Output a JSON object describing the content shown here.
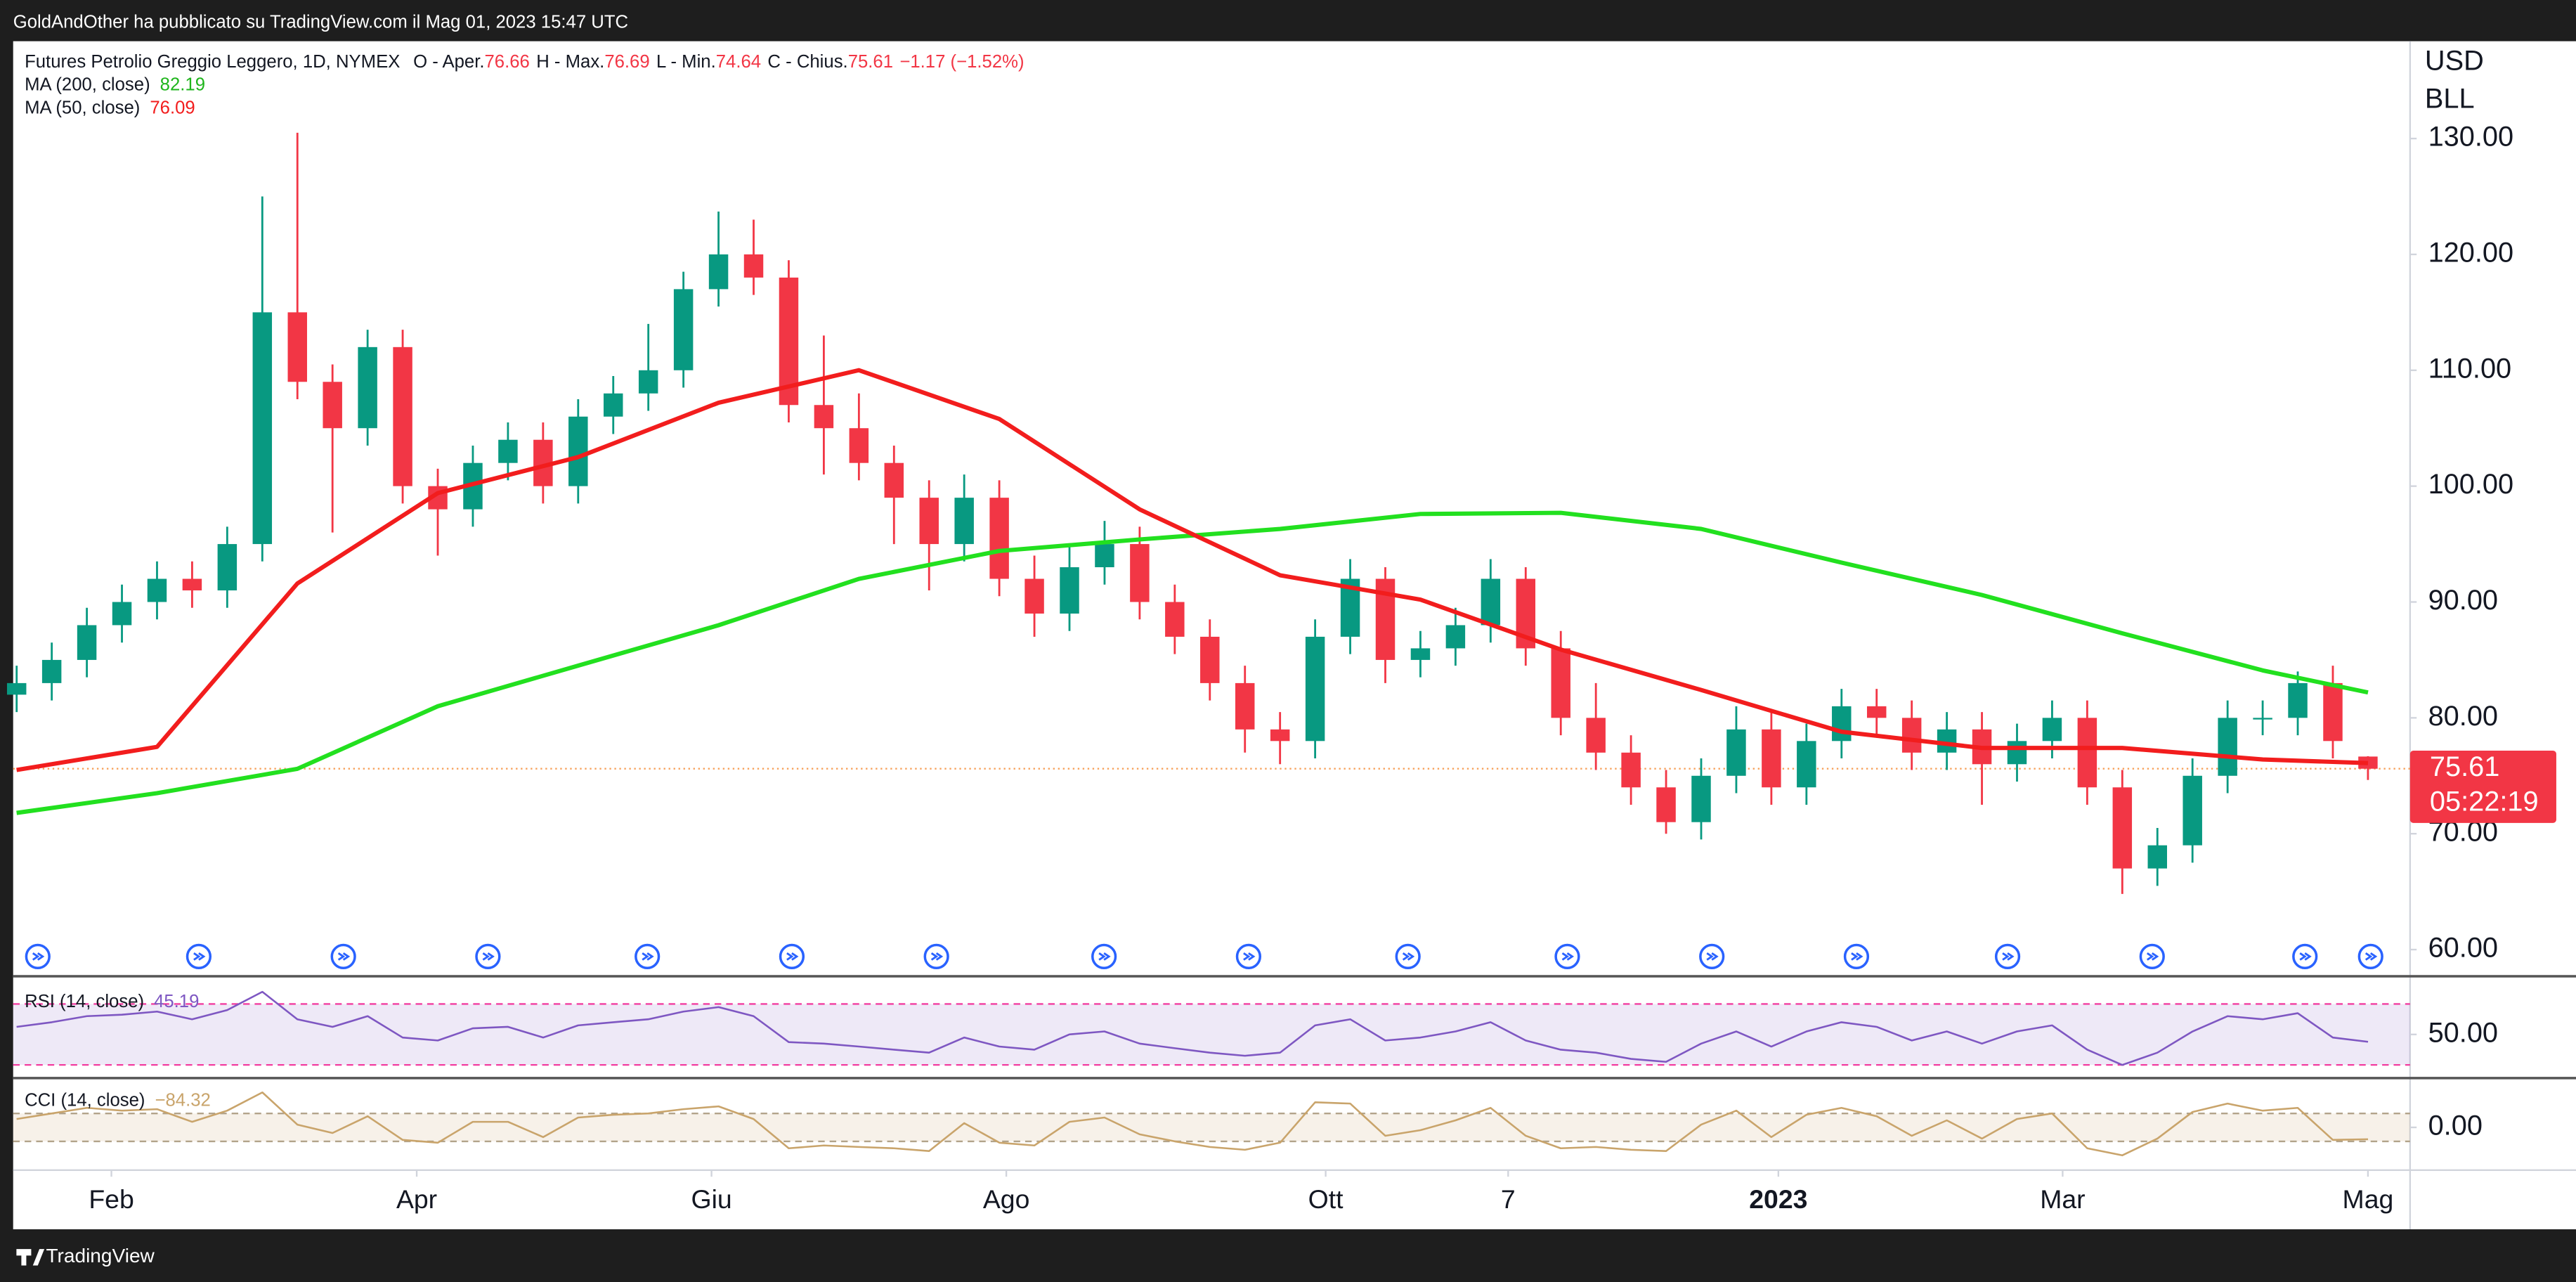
{
  "header": "GoldAndOther ha pubblicato su TradingView.com il Mag 01, 2023 15:47 UTC",
  "footer": "TradingView",
  "chart_data": {
    "type": "candlestick",
    "title": "Futures Petrolio Greggio Leggero, 1D, NYMEX",
    "legend_labels": {
      "open": "O - Aper.",
      "high": "H - Max.",
      "low": "L - Min.",
      "close": "C - Chius."
    },
    "change_label": "−1.17 (−1.52%)",
    "currency": "USD",
    "unit": "BLL",
    "countdown": "05:22:19",
    "up_color": "#089981",
    "down_color": "#f23645",
    "xlim": [
      -0.1,
      68.2
    ],
    "xticks": [
      {
        "value": 2.7,
        "label": "Feb"
      },
      {
        "value": 11.4,
        "label": "Apr"
      },
      {
        "value": 19.8,
        "label": "Giu"
      },
      {
        "value": 28.2,
        "label": "Ago"
      },
      {
        "value": 37.3,
        "label": "Ott"
      },
      {
        "value": 42.5,
        "label": "7"
      },
      {
        "value": 50.2,
        "label": "2023"
      },
      {
        "value": 58.3,
        "label": "Mar"
      },
      {
        "value": 67,
        "label": "Mag"
      }
    ],
    "ylim": [
      57.7,
      138.4
    ],
    "yticks": [
      {
        "value": 60,
        "label": "60.00"
      },
      {
        "value": 70,
        "label": "70.00"
      },
      {
        "value": 80,
        "label": "80.00"
      },
      {
        "value": 90,
        "label": "90.00"
      },
      {
        "value": 100,
        "label": "100.00"
      },
      {
        "value": 110,
        "label": "110.00"
      },
      {
        "value": 120,
        "label": "120.00"
      },
      {
        "value": 130,
        "label": "130.00"
      }
    ],
    "open": [
      82,
      83,
      85,
      88,
      90,
      92,
      91,
      95,
      115,
      109,
      105,
      112,
      100,
      98,
      102,
      104,
      100,
      106,
      108,
      110,
      117,
      120,
      118,
      107,
      105,
      102,
      99,
      95,
      99,
      92,
      89,
      93,
      95,
      90,
      87,
      83,
      79,
      78,
      87,
      92,
      85,
      86,
      88,
      92,
      86,
      80,
      77,
      74,
      71,
      75,
      79,
      74,
      78,
      81,
      80,
      77,
      79,
      76,
      78,
      80,
      74,
      67,
      69,
      75,
      80,
      80,
      83,
      76.66
    ],
    "high": [
      84.5,
      86.5,
      89.5,
      91.5,
      93.5,
      93.5,
      96.5,
      125,
      130.5,
      110.5,
      113.5,
      113.5,
      101.5,
      103.5,
      105.5,
      105.5,
      107.5,
      109.5,
      114,
      118.5,
      123.7,
      123,
      119.5,
      113,
      108,
      103.5,
      100.5,
      101,
      100.5,
      94,
      95,
      97,
      96.5,
      91.5,
      88.5,
      84.5,
      80.5,
      88.5,
      93.7,
      93,
      87.5,
      89.5,
      93.7,
      93,
      87.5,
      83,
      78.5,
      75.5,
      76.5,
      81,
      80.5,
      79.5,
      82.5,
      82.5,
      81.5,
      80.5,
      80.5,
      79.5,
      81.5,
      81.5,
      75.5,
      70.5,
      76.5,
      81.5,
      81.5,
      84,
      84.5,
      76.69
    ],
    "low": [
      80.5,
      81.5,
      83.5,
      86.5,
      88.5,
      89.5,
      89.5,
      93.5,
      107.5,
      96,
      103.5,
      98.5,
      94,
      96.5,
      100.5,
      98.5,
      98.5,
      104.5,
      106.5,
      108.5,
      115.5,
      116.5,
      105.5,
      101,
      100.5,
      95,
      91,
      93.5,
      90.5,
      87,
      87.5,
      91.5,
      88.5,
      85.5,
      81.5,
      77,
      76,
      76.5,
      85.5,
      83,
      83.5,
      84.5,
      86.5,
      84.5,
      78.5,
      75.5,
      72.5,
      70,
      69.5,
      73.5,
      72.5,
      72.5,
      76.5,
      78.5,
      75.5,
      75.5,
      72.5,
      74.5,
      76.5,
      72.5,
      64.8,
      65.5,
      67.5,
      73.5,
      78.5,
      78.5,
      76.5,
      74.64
    ],
    "close": [
      83,
      85,
      88,
      90,
      92,
      91,
      95,
      115,
      109,
      105,
      112,
      100,
      98,
      102,
      104,
      100,
      106,
      108,
      110,
      117,
      120,
      118,
      107,
      105,
      102,
      99,
      95,
      99,
      92,
      89,
      93,
      95,
      90,
      87,
      83,
      79,
      78,
      87,
      92,
      85,
      86,
      88,
      92,
      86,
      80,
      77,
      74,
      71,
      75,
      79,
      74,
      78,
      81,
      80,
      77,
      79,
      76,
      78,
      80,
      74,
      67,
      69,
      75,
      80,
      80,
      83,
      78,
      75.61
    ],
    "series": [
      {
        "name": "MA (200, close)",
        "color": "#22e01f",
        "x": [
          0,
          4,
          8,
          12,
          16,
          20,
          24,
          28,
          32,
          36,
          40,
          44,
          48,
          52,
          56,
          60,
          64,
          67
        ],
        "values": [
          71.8,
          73.5,
          75.6,
          81,
          84.5,
          88,
          92,
          94.4,
          95.4,
          96.3,
          97.6,
          97.7,
          96.3,
          93.4,
          90.6,
          87.3,
          84.1,
          82.19
        ]
      },
      {
        "name": "MA (50, close)",
        "color": "#f21d1d",
        "x": [
          0,
          4,
          8,
          12,
          16,
          20,
          24,
          28,
          32,
          36,
          40,
          44,
          48,
          52,
          56,
          60,
          64,
          67
        ],
        "values": [
          75.5,
          77.5,
          91.6,
          99.4,
          102.5,
          107.2,
          110,
          105.8,
          98,
          92.3,
          90.2,
          85.9,
          82.4,
          78.8,
          77.4,
          77.4,
          76.4,
          76.09
        ]
      }
    ],
    "rsi": {
      "name": "RSI (14, close)",
      "color": "#7e57c2",
      "band_color": "#f23da0",
      "ylim": [
        22.4,
        85
      ],
      "yticks": [
        {
          "value": 50,
          "label": "50.00"
        }
      ],
      "bands": [
        30,
        70
      ],
      "values": [
        55,
        58,
        62,
        63,
        65,
        60,
        66,
        78,
        60,
        55,
        62,
        48,
        46,
        54,
        55,
        48,
        56,
        58,
        60,
        65,
        68,
        62,
        45,
        44,
        42,
        40,
        38,
        48,
        42,
        40,
        50,
        52,
        44,
        41,
        38,
        36,
        38,
        56,
        60,
        46,
        48,
        52,
        58,
        46,
        40,
        38,
        34,
        32,
        44,
        52,
        42,
        52,
        58,
        55,
        46,
        52,
        44,
        52,
        56,
        40,
        30,
        38,
        52,
        62,
        60,
        64,
        48,
        45.19
      ]
    },
    "cci": {
      "name": "CCI (14, close)",
      "color": "#c9a46b",
      "last_label": "−84.32",
      "ylim": [
        -306,
        341
      ],
      "yticks": [
        {
          "value": 0,
          "label": "0.00"
        }
      ],
      "bands": [
        -100,
        100
      ],
      "values": [
        60,
        100,
        140,
        120,
        130,
        40,
        120,
        250,
        20,
        -40,
        80,
        -90,
        -110,
        40,
        40,
        -70,
        70,
        90,
        100,
        130,
        150,
        60,
        -150,
        -130,
        -140,
        -150,
        -170,
        30,
        -110,
        -130,
        40,
        70,
        -50,
        -100,
        -140,
        -160,
        -110,
        180,
        170,
        -60,
        -20,
        50,
        140,
        -60,
        -150,
        -140,
        -160,
        -170,
        20,
        120,
        -70,
        90,
        140,
        80,
        -60,
        50,
        -80,
        60,
        100,
        -150,
        -200,
        -80,
        110,
        170,
        120,
        140,
        -90,
        -84.32
      ]
    }
  }
}
